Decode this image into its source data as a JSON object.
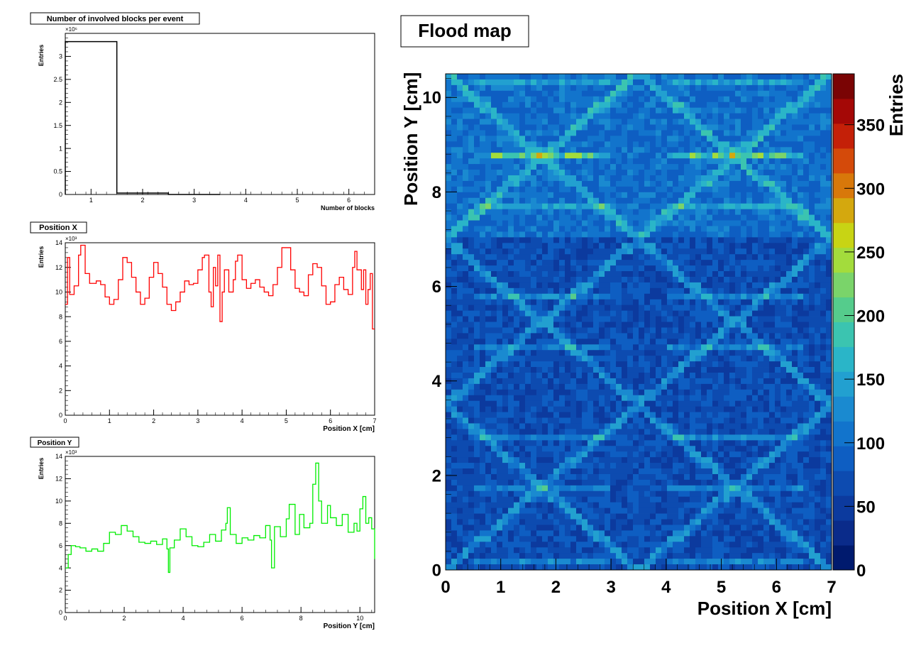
{
  "chart_data": [
    {
      "type": "bar",
      "title": "Number of involved blocks per event",
      "xlabel": "Number of blocks",
      "ylabel": "Entries",
      "y_multiplier": "×10⁶",
      "xlim": [
        0.5,
        6.5
      ],
      "ylim": [
        0,
        3.5
      ],
      "xticks": [
        1,
        2,
        3,
        4,
        5,
        6
      ],
      "yticks": [
        0,
        0.5,
        1,
        1.5,
        2,
        2.5,
        3
      ],
      "bins": [
        [
          0.5,
          1.5,
          3.32
        ],
        [
          1.5,
          2.5,
          0.03
        ],
        [
          2.5,
          3.5,
          0.0
        ]
      ],
      "color": "#000000"
    },
    {
      "type": "line",
      "title": "Position X",
      "xlabel": "Position X [cm]",
      "ylabel": "Entries",
      "y_multiplier": "×10³",
      "xlim": [
        0,
        7
      ],
      "ylim": [
        0,
        14
      ],
      "xticks": [
        0,
        1,
        2,
        3,
        4,
        5,
        6,
        7
      ],
      "yticks": [
        0,
        2,
        4,
        6,
        8,
        10,
        12,
        14
      ],
      "color": "#ff0000",
      "points": [
        [
          0,
          9.0
        ],
        [
          0.05,
          12.8
        ],
        [
          0.1,
          9.8
        ],
        [
          0.2,
          10.5
        ],
        [
          0.3,
          13.0
        ],
        [
          0.35,
          13.8
        ],
        [
          0.45,
          11.5
        ],
        [
          0.55,
          10.7
        ],
        [
          0.7,
          10.9
        ],
        [
          0.8,
          10.6
        ],
        [
          0.9,
          9.6
        ],
        [
          1.0,
          9.0
        ],
        [
          1.1,
          9.4
        ],
        [
          1.2,
          11.0
        ],
        [
          1.3,
          12.8
        ],
        [
          1.4,
          12.4
        ],
        [
          1.5,
          11.2
        ],
        [
          1.6,
          10.0
        ],
        [
          1.7,
          9.0
        ],
        [
          1.8,
          9.5
        ],
        [
          1.9,
          11.2
        ],
        [
          2.0,
          12.4
        ],
        [
          2.1,
          11.5
        ],
        [
          2.2,
          10.4
        ],
        [
          2.3,
          9.0
        ],
        [
          2.4,
          8.5
        ],
        [
          2.5,
          9.2
        ],
        [
          2.6,
          10.0
        ],
        [
          2.7,
          10.9
        ],
        [
          2.8,
          10.6
        ],
        [
          2.9,
          10.7
        ],
        [
          3.0,
          11.8
        ],
        [
          3.1,
          12.8
        ],
        [
          3.15,
          13.0
        ],
        [
          3.25,
          10.0
        ],
        [
          3.3,
          8.8
        ],
        [
          3.35,
          12.0
        ],
        [
          3.4,
          10.5
        ],
        [
          3.45,
          13.0
        ],
        [
          3.5,
          7.6
        ],
        [
          3.55,
          10.0
        ],
        [
          3.6,
          11.8
        ],
        [
          3.7,
          10.0
        ],
        [
          3.8,
          11.0
        ],
        [
          3.85,
          12.5
        ],
        [
          3.9,
          13.0
        ],
        [
          4.0,
          11.0
        ],
        [
          4.1,
          10.3
        ],
        [
          4.2,
          10.7
        ],
        [
          4.3,
          11.0
        ],
        [
          4.4,
          10.4
        ],
        [
          4.5,
          10.0
        ],
        [
          4.6,
          9.7
        ],
        [
          4.7,
          10.6
        ],
        [
          4.8,
          12.0
        ],
        [
          4.9,
          13.6
        ],
        [
          5.0,
          13.6
        ],
        [
          5.1,
          11.8
        ],
        [
          5.2,
          10.3
        ],
        [
          5.3,
          10.0
        ],
        [
          5.4,
          9.7
        ],
        [
          5.5,
          11.4
        ],
        [
          5.6,
          12.3
        ],
        [
          5.7,
          12.0
        ],
        [
          5.8,
          10.5
        ],
        [
          5.9,
          9.0
        ],
        [
          6.0,
          9.2
        ],
        [
          6.1,
          10.6
        ],
        [
          6.2,
          11.2
        ],
        [
          6.3,
          10.2
        ],
        [
          6.4,
          9.8
        ],
        [
          6.5,
          12.0
        ],
        [
          6.55,
          13.3
        ],
        [
          6.6,
          11.8
        ],
        [
          6.7,
          10.2
        ],
        [
          6.75,
          11.8
        ],
        [
          6.8,
          9.0
        ],
        [
          6.85,
          10.2
        ],
        [
          6.9,
          11.5
        ],
        [
          6.95,
          7.0
        ]
      ]
    },
    {
      "type": "line",
      "title": "Position Y",
      "xlabel": "Position Y [cm]",
      "ylabel": "Entries",
      "y_multiplier": "×10³",
      "xlim": [
        0,
        10.5
      ],
      "ylim": [
        0,
        14
      ],
      "xticks": [
        0,
        2,
        4,
        6,
        8,
        10
      ],
      "yticks": [
        0,
        2,
        4,
        6,
        8,
        10,
        12,
        14
      ],
      "color": "#00ee00",
      "points": [
        [
          0,
          4.0
        ],
        [
          0.1,
          5.2
        ],
        [
          0.2,
          6.0
        ],
        [
          0.35,
          5.9
        ],
        [
          0.5,
          5.8
        ],
        [
          0.7,
          5.5
        ],
        [
          0.9,
          5.7
        ],
        [
          1.1,
          5.5
        ],
        [
          1.3,
          6.2
        ],
        [
          1.5,
          7.2
        ],
        [
          1.7,
          7.0
        ],
        [
          1.9,
          7.8
        ],
        [
          2.1,
          7.3
        ],
        [
          2.3,
          6.8
        ],
        [
          2.5,
          6.3
        ],
        [
          2.7,
          6.2
        ],
        [
          2.9,
          6.4
        ],
        [
          3.1,
          6.1
        ],
        [
          3.3,
          6.6
        ],
        [
          3.45,
          5.7
        ],
        [
          3.5,
          3.6
        ],
        [
          3.55,
          5.8
        ],
        [
          3.7,
          6.5
        ],
        [
          3.9,
          7.5
        ],
        [
          4.1,
          6.8
        ],
        [
          4.3,
          6.0
        ],
        [
          4.5,
          5.9
        ],
        [
          4.7,
          6.3
        ],
        [
          4.9,
          7.0
        ],
        [
          5.1,
          6.4
        ],
        [
          5.3,
          7.4
        ],
        [
          5.45,
          8.0
        ],
        [
          5.5,
          9.4
        ],
        [
          5.6,
          7.0
        ],
        [
          5.8,
          6.2
        ],
        [
          6.0,
          6.7
        ],
        [
          6.2,
          6.5
        ],
        [
          6.4,
          6.9
        ],
        [
          6.6,
          6.7
        ],
        [
          6.8,
          7.8
        ],
        [
          6.95,
          6.5
        ],
        [
          7.0,
          4.0
        ],
        [
          7.1,
          7.7
        ],
        [
          7.3,
          6.8
        ],
        [
          7.5,
          8.4
        ],
        [
          7.6,
          9.7
        ],
        [
          7.8,
          7.0
        ],
        [
          7.95,
          8.8
        ],
        [
          8.1,
          7.6
        ],
        [
          8.3,
          8.0
        ],
        [
          8.4,
          11.5
        ],
        [
          8.5,
          13.4
        ],
        [
          8.6,
          10.0
        ],
        [
          8.7,
          8.0
        ],
        [
          8.9,
          9.6
        ],
        [
          9.0,
          8.5
        ],
        [
          9.2,
          7.8
        ],
        [
          9.4,
          8.8
        ],
        [
          9.6,
          7.2
        ],
        [
          9.8,
          8.0
        ],
        [
          9.9,
          7.3
        ],
        [
          10.0,
          9.3
        ],
        [
          10.1,
          10.4
        ],
        [
          10.2,
          8.0
        ],
        [
          10.3,
          8.5
        ],
        [
          10.4,
          7.5
        ],
        [
          10.5,
          4.8
        ]
      ]
    },
    {
      "type": "heatmap",
      "title": "Flood map",
      "xlabel": "Position X [cm]",
      "ylabel": "Position Y [cm]",
      "zlabel": "Entries",
      "xlim": [
        0,
        7
      ],
      "ylim": [
        0,
        10.5
      ],
      "zlim": [
        0,
        390
      ],
      "xticks": [
        0,
        1,
        2,
        3,
        4,
        5,
        6,
        7
      ],
      "yticks": [
        0,
        2,
        4,
        6,
        8,
        10
      ],
      "zticks": [
        0,
        50,
        100,
        150,
        200,
        250,
        300,
        350
      ],
      "palette": [
        "#001a6e",
        "#0a2b8a",
        "#0c3a9e",
        "#0d4bb0",
        "#0e5ec2",
        "#1274cc",
        "#1a8ad0",
        "#22a0d0",
        "#2ab5c8",
        "#3bc4b0",
        "#55cc8c",
        "#7ad46a",
        "#a3dc3c",
        "#c8d414",
        "#d4a80e",
        "#d8780a",
        "#d44a0a",
        "#c42008",
        "#a40806",
        "#7a0404"
      ]
    }
  ]
}
